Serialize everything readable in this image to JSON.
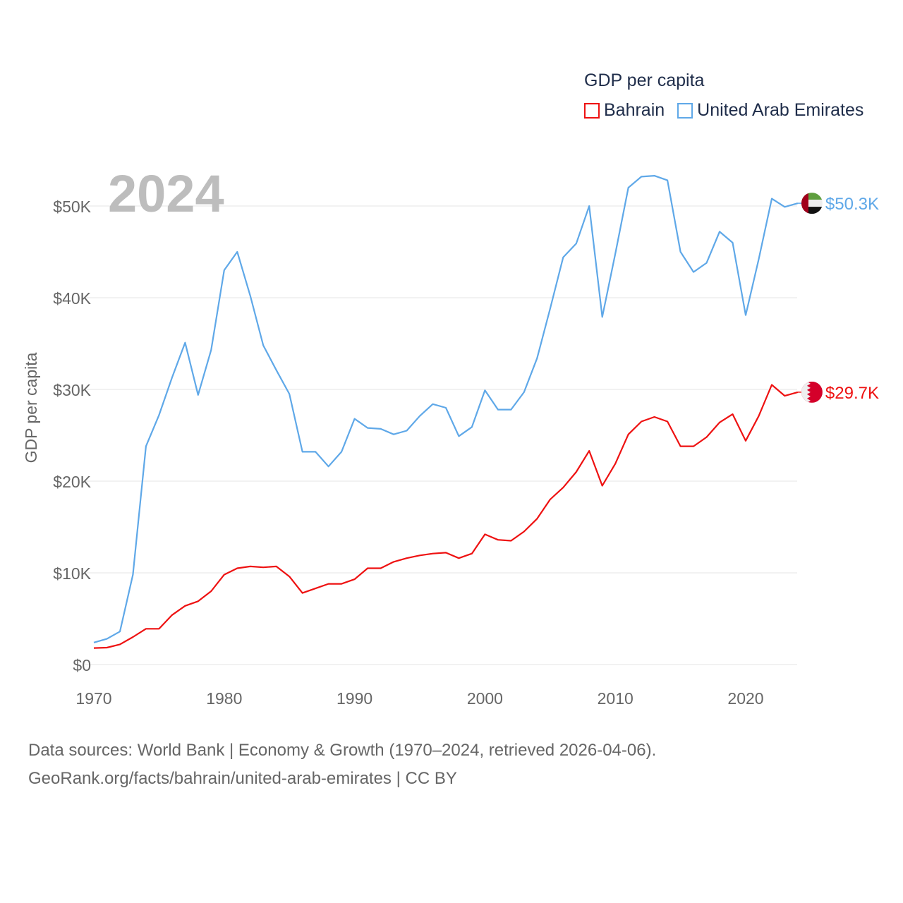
{
  "chart_data": {
    "type": "line",
    "title": "",
    "year_label": "2024",
    "ylabel": "GDP per capita",
    "xlabel": "",
    "xlim": [
      1970,
      2024
    ],
    "ylim": [
      0,
      55000
    ],
    "grid": true,
    "x_ticks": [
      1970,
      1980,
      1990,
      2000,
      2010,
      2020
    ],
    "x_tick_labels": [
      "1970",
      "1980",
      "1990",
      "2000",
      "2010",
      "2020"
    ],
    "y_ticks": [
      0,
      10000,
      20000,
      30000,
      40000,
      50000
    ],
    "y_tick_labels": [
      "$0",
      "$10K",
      "$20K",
      "$30K",
      "$40K",
      "$50K"
    ],
    "legend": {
      "title": "GDP per capita",
      "placement": "top-right"
    },
    "x": [
      1970,
      1971,
      1972,
      1973,
      1974,
      1975,
      1976,
      1977,
      1978,
      1979,
      1980,
      1981,
      1982,
      1983,
      1984,
      1985,
      1986,
      1987,
      1988,
      1989,
      1990,
      1991,
      1992,
      1993,
      1994,
      1995,
      1996,
      1997,
      1998,
      1999,
      2000,
      2001,
      2002,
      2003,
      2004,
      2005,
      2006,
      2007,
      2008,
      2009,
      2010,
      2011,
      2012,
      2013,
      2014,
      2015,
      2016,
      2017,
      2018,
      2019,
      2020,
      2021,
      2022,
      2023,
      2024
    ],
    "series": [
      {
        "name": "Bahrain",
        "color": "#ee1111",
        "end_label": "$29.7K",
        "flag": "bahrain-flag",
        "values": [
          1800,
          1850,
          2200,
          3000,
          3900,
          3900,
          5400,
          6400,
          6900,
          8000,
          9800,
          10500,
          10700,
          10600,
          10700,
          9600,
          7800,
          8300,
          8800,
          8800,
          9300,
          10500,
          10500,
          11200,
          11600,
          11900,
          12100,
          12200,
          11600,
          12100,
          14200,
          13600,
          13500,
          14500,
          15900,
          18000,
          19300,
          21000,
          23300,
          19500,
          21900,
          25100,
          26500,
          27000,
          26500,
          23800,
          23800,
          24800,
          26400,
          27300,
          24400,
          27100,
          30500,
          29300,
          29700
        ]
      },
      {
        "name": "United Arab Emirates",
        "color": "#5fa8e8",
        "end_label": "$50.3K",
        "flag": "uae-flag",
        "values": [
          2400,
          2800,
          3600,
          9800,
          23800,
          27200,
          31300,
          35100,
          29400,
          34300,
          43000,
          45000,
          40200,
          34800,
          32100,
          29500,
          23200,
          23200,
          21600,
          23200,
          26800,
          25800,
          25700,
          25100,
          25500,
          27100,
          28400,
          28000,
          24900,
          25900,
          29900,
          27800,
          27800,
          29700,
          33400,
          38800,
          44400,
          45900,
          50000,
          37900,
          44800,
          52000,
          53200,
          53300,
          52800,
          45000,
          42800,
          43800,
          47200,
          46000,
          38100,
          44200,
          50800,
          49900,
          50300
        ]
      }
    ]
  },
  "footer": {
    "line1": "Data sources: World Bank | Economy & Growth (1970–2024, retrieved 2026-04-06).",
    "line2": "GeoRank.org/facts/bahrain/united-arab-emirates | CC BY"
  }
}
